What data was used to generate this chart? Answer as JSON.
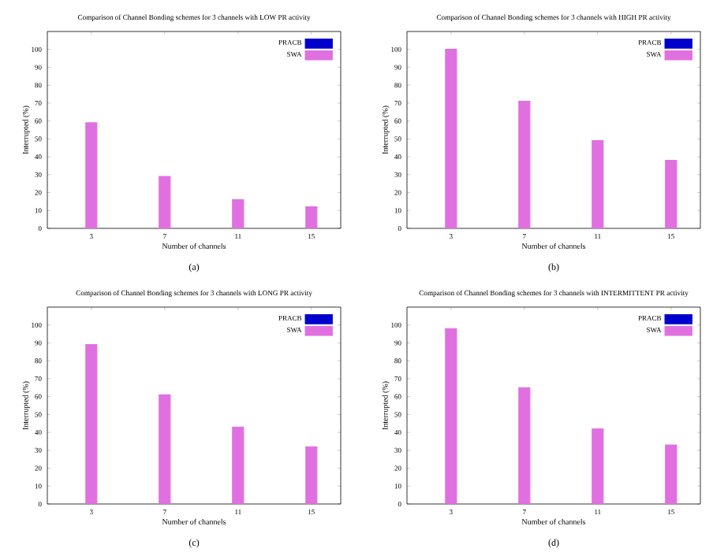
{
  "chart_data": [
    {
      "type": "bar",
      "title": "Comparison of  Channel Bonding schemes for 3 channels with LOW PR activity",
      "xlabel": "Number of channels",
      "ylabel": "Interrupted (%)",
      "categories": [
        "3",
        "7",
        "11",
        "15"
      ],
      "ylim": [
        0,
        110
      ],
      "yticks": [
        0,
        10,
        20,
        30,
        40,
        50,
        60,
        70,
        80,
        90,
        100
      ],
      "legend": "top right",
      "annotations": [
        "(a)"
      ],
      "series": [
        {
          "name": "PRACB",
          "color": "#0000cc",
          "values": [
            null,
            null,
            null,
            null
          ]
        },
        {
          "name": "SWA",
          "color": "#e070e0",
          "values": [
            59,
            29,
            16,
            12
          ]
        }
      ]
    },
    {
      "type": "bar",
      "title": "Comparison of  Channel Bonding schemes for 3 channels with HIGH PR activity",
      "xlabel": "Number of channels",
      "ylabel": "Interrupted (%)",
      "categories": [
        "3",
        "7",
        "11",
        "15"
      ],
      "ylim": [
        0,
        110
      ],
      "yticks": [
        0,
        10,
        20,
        30,
        40,
        50,
        60,
        70,
        80,
        90,
        100
      ],
      "legend": "top right",
      "annotations": [
        "(b)"
      ],
      "series": [
        {
          "name": "PRACB",
          "color": "#0000cc",
          "values": [
            null,
            null,
            null,
            null
          ]
        },
        {
          "name": "SWA",
          "color": "#e070e0",
          "values": [
            100,
            71,
            49,
            38
          ]
        }
      ]
    },
    {
      "type": "bar",
      "title": "Comparison of  Channel Bonding schemes for 3 channels with LONG PR activity",
      "xlabel": "Number of channels",
      "ylabel": "Interrupted (%)",
      "categories": [
        "3",
        "7",
        "11",
        "15"
      ],
      "ylim": [
        0,
        110
      ],
      "yticks": [
        0,
        10,
        20,
        30,
        40,
        50,
        60,
        70,
        80,
        90,
        100
      ],
      "legend": "top right",
      "annotations": [
        "(c)"
      ],
      "series": [
        {
          "name": "PRACB",
          "color": "#0000cc",
          "values": [
            null,
            null,
            null,
            null
          ]
        },
        {
          "name": "SWA",
          "color": "#e070e0",
          "values": [
            89,
            61,
            43,
            32
          ]
        }
      ]
    },
    {
      "type": "bar",
      "title": "Comparison of  Channel Bonding schemes for 3 channels with INTERMITTENT PR activity",
      "xlabel": "Number of channels",
      "ylabel": "Interrupted (%)",
      "categories": [
        "3",
        "7",
        "11",
        "15"
      ],
      "ylim": [
        0,
        110
      ],
      "yticks": [
        0,
        10,
        20,
        30,
        40,
        50,
        60,
        70,
        80,
        90,
        100
      ],
      "legend": "top right",
      "annotations": [
        "(d)"
      ],
      "series": [
        {
          "name": "PRACB",
          "color": "#0000cc",
          "values": [
            null,
            null,
            null,
            null
          ]
        },
        {
          "name": "SWA",
          "color": "#e070e0",
          "values": [
            98,
            65,
            42,
            33
          ]
        }
      ]
    }
  ]
}
